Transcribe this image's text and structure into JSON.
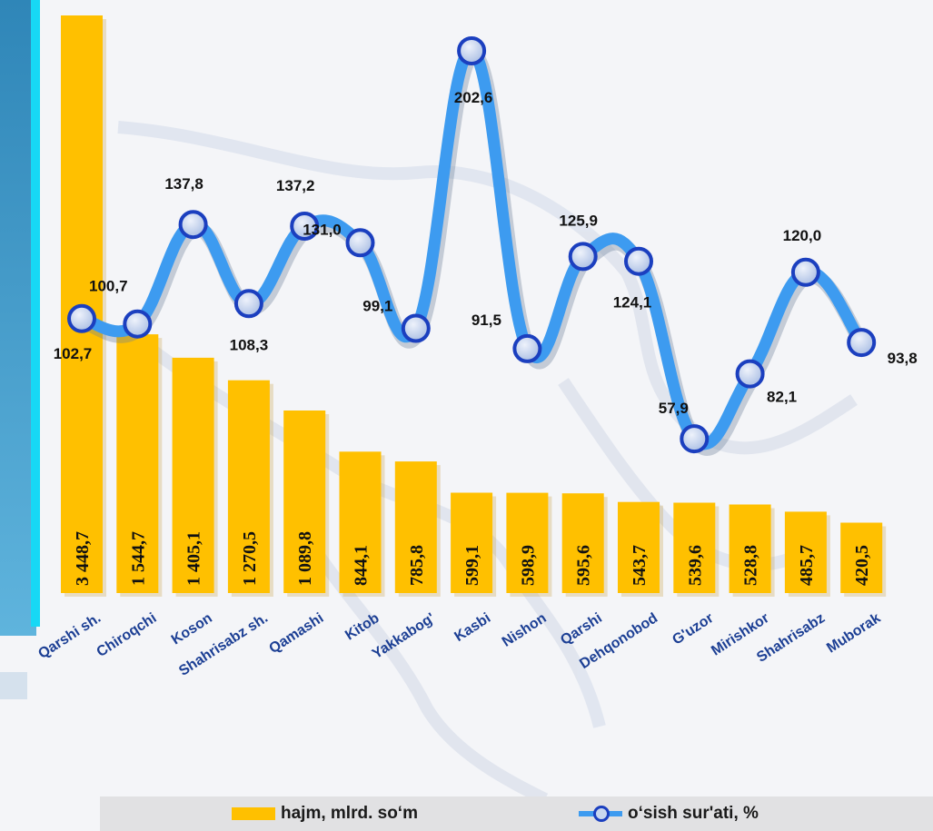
{
  "chart_data": {
    "type": "bar+line",
    "categories": [
      "Qarshi sh.",
      "Chiroqchi",
      "Koson",
      "Shahrisabz sh.",
      "Qamashi",
      "Kitob",
      "Yakkabog'",
      "Kasbi",
      "Nishon",
      "Qarshi",
      "Dehqonobod",
      "G'uzor",
      "Mirishkor",
      "Shahrisabz",
      "Muborak"
    ],
    "series": [
      {
        "name": "hajm, mlrd. so‘m",
        "type": "bar",
        "values": [
          3448.7,
          1544.7,
          1405.1,
          1270.5,
          1089.8,
          844.1,
          785.8,
          599.1,
          598.9,
          595.6,
          543.7,
          539.6,
          528.8,
          485.7,
          420.5
        ],
        "labels": [
          "3 448,7",
          "1 544,7",
          "1 405,1",
          "1 270,5",
          "1 089,8",
          "844,1",
          "785,8",
          "599,1",
          "598,9",
          "595,6",
          "543,7",
          "539,6",
          "528,8",
          "485,7",
          "420,5"
        ],
        "color": "#ffc000"
      },
      {
        "name": "o‘sish sur'ati, %",
        "type": "line",
        "values": [
          102.7,
          100.7,
          137.8,
          108.3,
          137.2,
          131.0,
          99.1,
          202.6,
          91.5,
          125.9,
          124.1,
          57.9,
          82.1,
          120.0,
          93.8
        ],
        "labels": [
          "102,7",
          "100,7",
          "137,8",
          "108,3",
          "137,2",
          "131,0",
          "99,1",
          "202,6",
          "91,5",
          "125,9",
          "124,1",
          "57,9",
          "82,1",
          "120,0",
          "93,8"
        ],
        "color": "#3d9bf0",
        "marker_color": "#1b3fbf"
      }
    ],
    "legend": "bottom",
    "grid": false
  }
}
